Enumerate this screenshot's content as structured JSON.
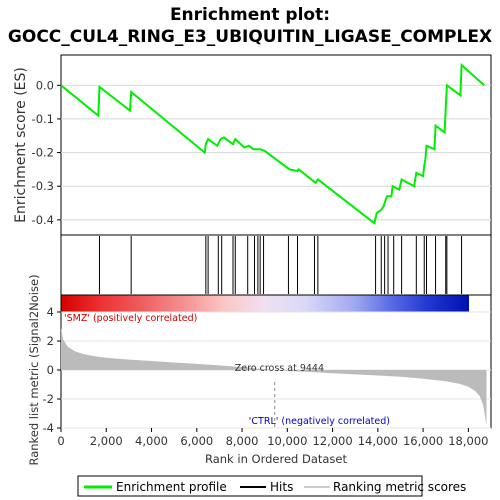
{
  "title_line1": "Enrichment plot:",
  "title_line2": "GOCC_CUL4_RING_E3_UBIQUITIN_LIGASE_COMPLEX",
  "colors": {
    "es_line": "#00ee00",
    "hits": "#000000",
    "pos_label": "#cc0000",
    "neg_label": "#0000cc",
    "metric_fill": "#bbbbbb",
    "zero_cross_line": "#888888"
  },
  "chart_data": [
    {
      "type": "line",
      "name": "enrichment-profile",
      "ylabel": "Enrichment score (ES)",
      "xlim": [
        0,
        19000
      ],
      "ylim": [
        -0.445,
        0.09
      ],
      "yticks": [
        0.0,
        -0.1,
        -0.2,
        -0.3,
        -0.4
      ],
      "ytick_labels": [
        "0.0",
        "-0.1",
        "-0.2",
        "-0.3",
        "-0.4"
      ],
      "grid": true,
      "points": [
        [
          0,
          0.0
        ],
        [
          1650,
          -0.09
        ],
        [
          1700,
          -0.005
        ],
        [
          3050,
          -0.075
        ],
        [
          3100,
          -0.02
        ],
        [
          6350,
          -0.2
        ],
        [
          6400,
          -0.175
        ],
        [
          6500,
          -0.16
        ],
        [
          6900,
          -0.18
        ],
        [
          7050,
          -0.16
        ],
        [
          7200,
          -0.155
        ],
        [
          7600,
          -0.175
        ],
        [
          7700,
          -0.16
        ],
        [
          8100,
          -0.185
        ],
        [
          8300,
          -0.18
        ],
        [
          8500,
          -0.19
        ],
        [
          8800,
          -0.19
        ],
        [
          9000,
          -0.195
        ],
        [
          10100,
          -0.25
        ],
        [
          10450,
          -0.255
        ],
        [
          10500,
          -0.25
        ],
        [
          11250,
          -0.29
        ],
        [
          11350,
          -0.28
        ],
        [
          13850,
          -0.41
        ],
        [
          13950,
          -0.38
        ],
        [
          14150,
          -0.37
        ],
        [
          14250,
          -0.36
        ],
        [
          14400,
          -0.33
        ],
        [
          14600,
          -0.33
        ],
        [
          14650,
          -0.3
        ],
        [
          14950,
          -0.31
        ],
        [
          15050,
          -0.28
        ],
        [
          15600,
          -0.3
        ],
        [
          15700,
          -0.26
        ],
        [
          16000,
          -0.27
        ],
        [
          16050,
          -0.24
        ],
        [
          16100,
          -0.22
        ],
        [
          16150,
          -0.18
        ],
        [
          16500,
          -0.19
        ],
        [
          16550,
          -0.12
        ],
        [
          16950,
          -0.14
        ],
        [
          17000,
          -0.07
        ],
        [
          17050,
          0.0
        ],
        [
          17650,
          -0.03
        ],
        [
          17700,
          0.06
        ],
        [
          18700,
          0.0
        ]
      ]
    },
    {
      "type": "hits",
      "name": "gene-hits",
      "positions": [
        1700,
        3100,
        6400,
        6500,
        6950,
        7100,
        7600,
        7700,
        8250,
        8550,
        8700,
        8800,
        8950,
        10050,
        10450,
        11200,
        11350,
        13900,
        14150,
        14300,
        14450,
        14700,
        15050,
        15700,
        16050,
        16150,
        16550,
        17000,
        17050,
        17700
      ]
    },
    {
      "type": "area",
      "name": "ranked-list-metric",
      "ylabel": "Ranked list metric (Signal2Noise)",
      "xlabel": "Rank in Ordered Dataset",
      "xlim": [
        0,
        19000
      ],
      "ylim": [
        -4,
        4
      ],
      "yticks": [
        4,
        2,
        0,
        -2,
        -4
      ],
      "ytick_labels": [
        "4",
        "2",
        "0",
        "-2",
        "-4"
      ],
      "xticks": [
        0,
        2000,
        4000,
        6000,
        8000,
        10000,
        12000,
        14000,
        16000,
        18000
      ],
      "xtick_labels": [
        "0",
        "2,000",
        "4,000",
        "6,000",
        "8,000",
        "10,000",
        "12,000",
        "14,000",
        "16,000",
        "18,000"
      ],
      "points": [
        [
          0,
          2.9
        ],
        [
          100,
          2.1
        ],
        [
          300,
          1.6
        ],
        [
          600,
          1.3
        ],
        [
          1000,
          1.1
        ],
        [
          1500,
          0.95
        ],
        [
          2000,
          0.85
        ],
        [
          3000,
          0.72
        ],
        [
          4000,
          0.62
        ],
        [
          5000,
          0.52
        ],
        [
          6000,
          0.42
        ],
        [
          7000,
          0.32
        ],
        [
          8000,
          0.2
        ],
        [
          9000,
          0.06
        ],
        [
          9444,
          0.0
        ],
        [
          10000,
          -0.06
        ],
        [
          11000,
          -0.14
        ],
        [
          12000,
          -0.22
        ],
        [
          13000,
          -0.3
        ],
        [
          14000,
          -0.38
        ],
        [
          15000,
          -0.47
        ],
        [
          16000,
          -0.6
        ],
        [
          17000,
          -0.78
        ],
        [
          17600,
          -0.95
        ],
        [
          18000,
          -1.15
        ],
        [
          18300,
          -1.45
        ],
        [
          18500,
          -1.8
        ],
        [
          18650,
          -2.4
        ],
        [
          18750,
          -3.3
        ],
        [
          18800,
          -3.8
        ]
      ],
      "zero_cross_label": "Zero cross at 9444",
      "zero_cross_at": 9444,
      "pos_label": "'SMZ' (positively correlated)",
      "neg_label": "'CTRL' (negatively correlated)"
    }
  ],
  "legend": {
    "items": [
      {
        "label": "Enrichment profile",
        "color": "#00ee00"
      },
      {
        "label": "Hits",
        "color": "#000000"
      },
      {
        "label": "Ranking metric scores",
        "color": "#cccccc"
      }
    ]
  }
}
